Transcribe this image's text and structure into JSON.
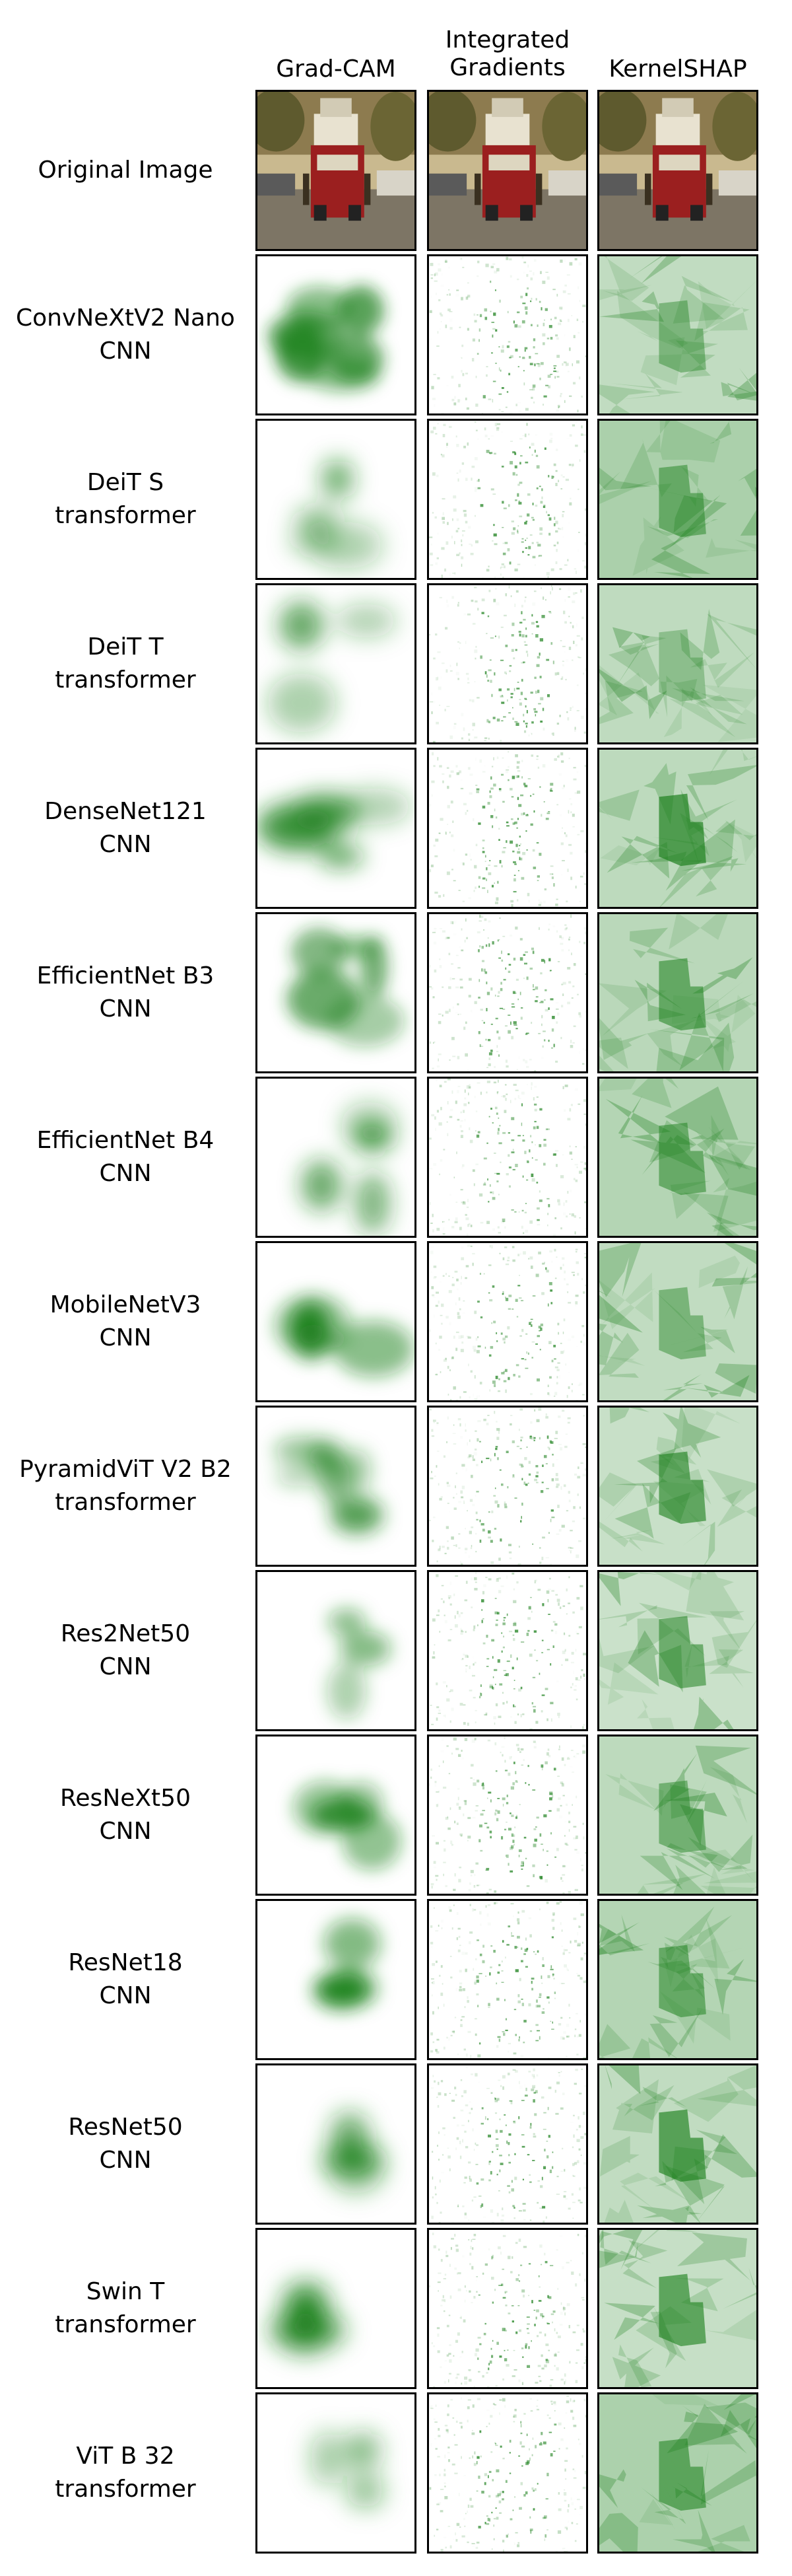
{
  "columns": [
    "Grad-CAM",
    "Integrated\nGradients",
    "KernelSHAP"
  ],
  "original_label": "Original Image",
  "rows": [
    {
      "name": "ConvNeXtV2 Nano",
      "type": "CNN"
    },
    {
      "name": "DeiT S",
      "type": "transformer"
    },
    {
      "name": "DeiT T",
      "type": "transformer"
    },
    {
      "name": "DenseNet121",
      "type": "CNN"
    },
    {
      "name": "EfficientNet B3",
      "type": "CNN"
    },
    {
      "name": "EfficientNet B4",
      "type": "CNN"
    },
    {
      "name": "MobileNetV3",
      "type": "CNN"
    },
    {
      "name": "PyramidViT V2 B2",
      "type": "transformer"
    },
    {
      "name": "Res2Net50",
      "type": "CNN"
    },
    {
      "name": "ResNeXt50",
      "type": "CNN"
    },
    {
      "name": "ResNet18",
      "type": "CNN"
    },
    {
      "name": "ResNet50",
      "type": "CNN"
    },
    {
      "name": "Swin T",
      "type": "transformer"
    },
    {
      "name": "ViT B 32",
      "type": "transformer"
    }
  ],
  "colors": {
    "attribution": "#1a7f1a",
    "frame": "#000000"
  }
}
